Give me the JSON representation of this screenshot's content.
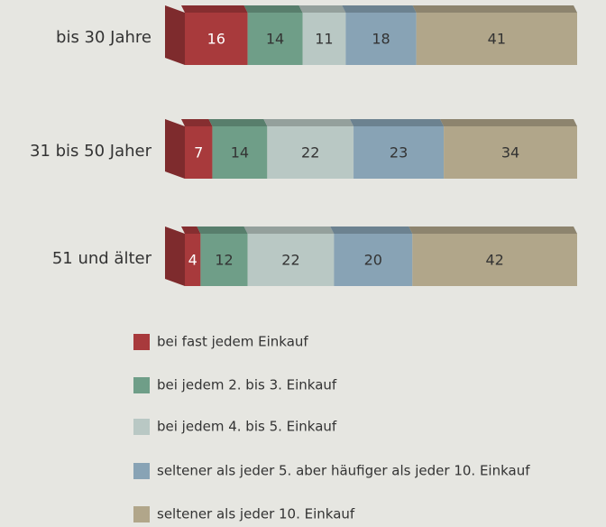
{
  "chart_data": {
    "type": "bar3d_stacked_horizontal",
    "categories": [
      "bis 30 Jahre",
      "31 bis 50 Jaher",
      "51 und älter"
    ],
    "xlim": [
      0,
      100
    ],
    "series": [
      {
        "name": "bei fast jedem Einkauf",
        "color": "#a83a3c",
        "values": [
          16,
          7,
          4
        ]
      },
      {
        "name": "bei jedem 2. bis 3. Einkauf",
        "color": "#6f9e88",
        "values": [
          14,
          14,
          12
        ]
      },
      {
        "name": "bei jedem 4. bis 5. Einkauf",
        "color": "#b9c8c4",
        "values": [
          11,
          22,
          22
        ]
      },
      {
        "name": "seltener als jeder 5. aber häufiger als jeder 10. Einkauf",
        "color": "#88a3b5",
        "values": [
          18,
          23,
          20
        ]
      },
      {
        "name": "seltener als jeder 10. Einkauf",
        "color": "#b1a68a",
        "values": [
          41,
          34,
          42
        ]
      }
    ],
    "legend": "bottom"
  }
}
